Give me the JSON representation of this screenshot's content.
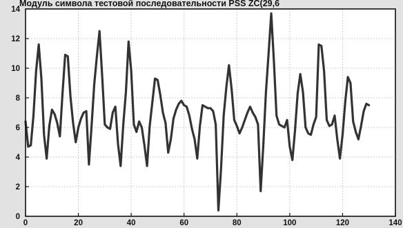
{
  "chart_data": {
    "type": "line",
    "title": "Модуль символа тестовой последовательности PSS ZC(29,6",
    "xlabel": "",
    "ylabel": "",
    "xlim": [
      0,
      140
    ],
    "ylim": [
      0,
      14
    ],
    "xticks": [
      0,
      20,
      40,
      60,
      80,
      100,
      120,
      140
    ],
    "yticks": [
      0,
      2,
      4,
      6,
      8,
      10,
      12,
      14
    ],
    "xtick_labels": [
      "0",
      "20",
      "40",
      "60",
      "80",
      "100",
      "120",
      "140"
    ],
    "ytick_labels": [
      "0",
      "2",
      "4",
      "6",
      "8",
      "10",
      "12",
      "14"
    ],
    "grid": true,
    "line_color": "#333333",
    "series": [
      {
        "values": [
          6.4,
          4.7,
          4.8,
          6.8,
          9.8,
          11.6,
          9.3,
          5.5,
          3.9,
          6.1,
          7.2,
          6.9,
          6.3,
          5.4,
          8.3,
          10.9,
          10.8,
          8.1,
          6.3,
          5.0,
          6.0,
          6.6,
          7.0,
          7.1,
          3.5,
          6.1,
          8.9,
          10.8,
          12.5,
          9.5,
          6.2,
          6.0,
          5.9,
          7.0,
          7.4,
          4.9,
          3.4,
          6.2,
          8.4,
          11.8,
          9.8,
          6.2,
          5.7,
          6.4,
          6.0,
          4.8,
          3.4,
          6.1,
          7.7,
          9.3,
          9.2,
          8.2,
          7.0,
          6.3,
          4.3,
          5.2,
          6.6,
          7.2,
          7.6,
          7.8,
          7.5,
          7.4,
          6.8,
          5.9,
          5.2,
          3.9,
          6.1,
          7.5,
          7.4,
          7.3,
          7.3,
          7.1,
          6.2,
          0.4,
          3.2,
          6.8,
          8.7,
          10.2,
          8.6,
          6.5,
          6.1,
          5.6,
          6.0,
          6.5,
          7.0,
          7.4,
          7.0,
          6.7,
          6.2,
          1.7,
          4.8,
          8.4,
          11.0,
          13.7,
          10.5,
          6.8,
          6.2,
          6.1,
          6.0,
          6.5,
          4.7,
          3.8,
          5.8,
          8.3,
          9.6,
          8.4,
          6.0,
          5.6,
          5.5,
          6.2,
          6.7,
          11.6,
          11.5,
          9.8,
          6.5,
          6.1,
          6.2,
          6.8,
          5.2,
          3.9,
          5.5,
          7.7,
          9.4,
          9.0,
          6.4,
          5.7,
          5.2,
          6.1,
          7.1,
          7.6,
          7.5
        ]
      }
    ]
  }
}
